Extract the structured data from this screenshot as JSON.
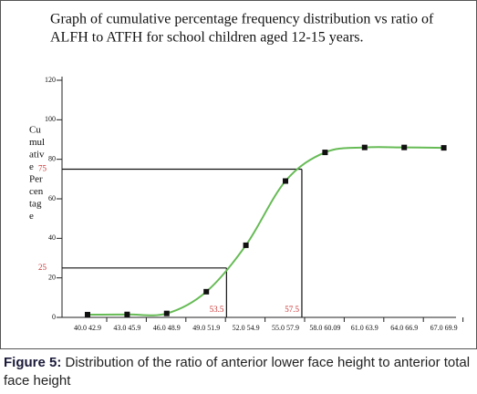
{
  "chart_data": {
    "type": "line",
    "title_lines": [
      "Graph of cumulative percentage frequency distribution vs ratio of",
      "ALFH to ATFH for school children aged 12-15 years."
    ],
    "ylabel_lines": [
      "Cu",
      "mul",
      "ativ",
      "e",
      "Per",
      "cen",
      "tag",
      "e"
    ],
    "categories": [
      "40.0 42.9",
      "43.0 45.9",
      "46.0 48.9",
      "49.0 51.9",
      "52.0 54.9",
      "55.0 57.9",
      "58.0 60.09",
      "61.0 63.9",
      "64.0 66.9",
      "67.0 69.9"
    ],
    "series": [
      {
        "name": "Cumulative percentage",
        "color": "#66bb55",
        "values": [
          1.4,
          1.5,
          2,
          13,
          36.5,
          69,
          83.5,
          86,
          86,
          85.8
        ]
      }
    ],
    "ylim": [
      0,
      120
    ],
    "yticks": [
      0,
      20,
      40,
      60,
      80,
      100,
      120
    ],
    "reference_lines": [
      {
        "y": 25,
        "x_label": 53.5
      },
      {
        "y": 75,
        "x_label": 57.5
      }
    ],
    "caption_label": "Figure 5:",
    "caption_text": "Distribution of the ratio of anterior lower face height to anterior total face height"
  }
}
